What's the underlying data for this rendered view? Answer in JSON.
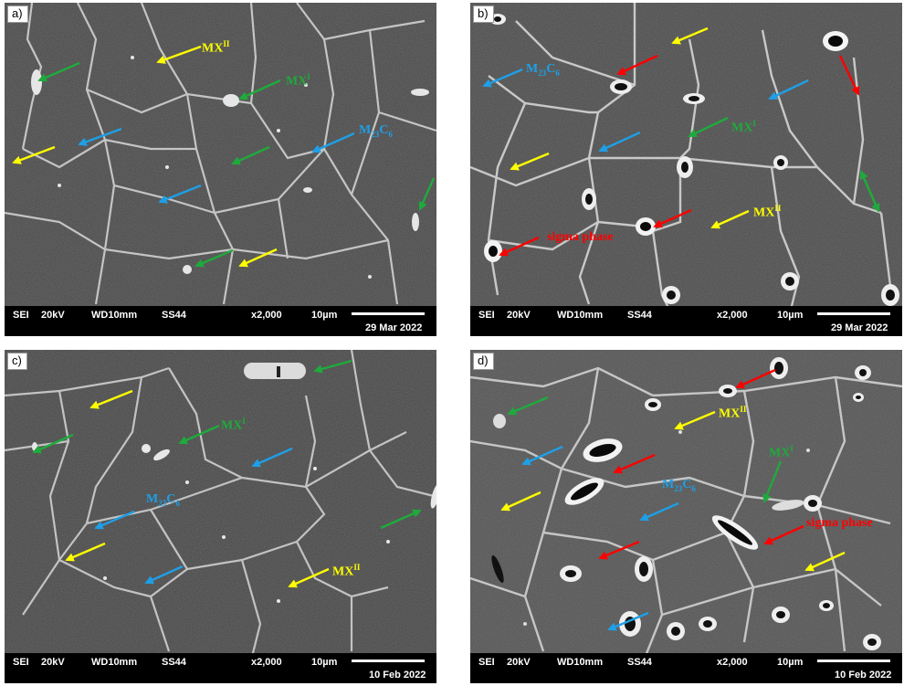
{
  "colors": {
    "mx_ii": "#ffff00",
    "mx_i": "#1faa3c",
    "m23c6": "#1e9fe6",
    "sigma": "#ff0000"
  },
  "common_bar": {
    "det": "SEI",
    "kv": "20kV",
    "wd": "WD10mm",
    "sample": "SS44",
    "mag": "x2,000",
    "scale": "10µm"
  },
  "panels": [
    {
      "label": "a)",
      "date": "29 Mar 2022",
      "annotations": {
        "mx_ii": "MX",
        "mx_ii_sup": "II",
        "mx_i": "MX",
        "mx_i_sup": "I",
        "m23c6_m": "M",
        "m23c6_23": "23",
        "m23c6_c": "C",
        "m23c6_6": "6"
      }
    },
    {
      "label": "b)",
      "date": "29 Mar 2022",
      "annotations": {
        "m23c6_m": "M",
        "m23c6_23": "23",
        "m23c6_c": "C",
        "m23c6_6": "6",
        "mx_i": "MX",
        "mx_i_sup": "I",
        "mx_ii": "MX",
        "mx_ii_sup": "II",
        "sigma": "sigma phase"
      }
    },
    {
      "label": "c)",
      "date": "10 Feb 2022",
      "annotations": {
        "mx_i": "MX",
        "mx_i_sup": "I",
        "m23c6_m": "M",
        "m23c6_23": "23",
        "m23c6_c": "C",
        "m23c6_6": "6",
        "mx_ii": "MX",
        "mx_ii_sup": "II"
      }
    },
    {
      "label": "d)",
      "date": "10 Feb 2022",
      "annotations": {
        "mx_ii": "MX",
        "mx_ii_sup": "II",
        "mx_i": "MX",
        "mx_i_sup": "I",
        "m23c6_m": "M",
        "m23c6_23": "23",
        "m23c6_c": "C",
        "m23c6_6": "6",
        "sigma": "sigma phase"
      }
    }
  ]
}
